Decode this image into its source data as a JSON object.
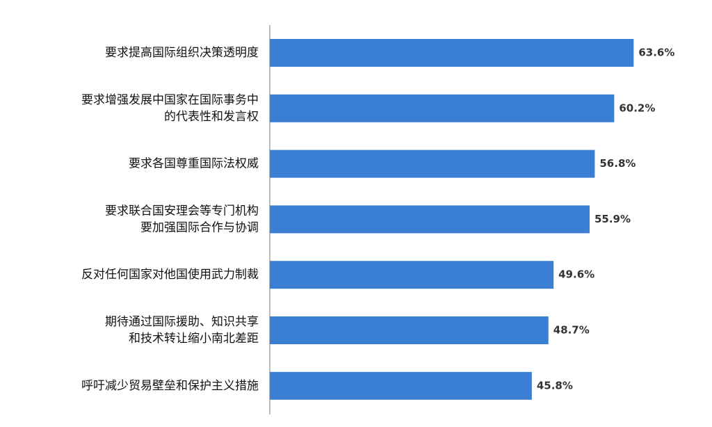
{
  "chart_data": {
    "type": "barh",
    "categories": [
      [
        "要求提高国际组织决策透明度"
      ],
      [
        "要求增强发展中国家在国际事务中",
        "的代表性和发言权"
      ],
      [
        "要求各国尊重国际法权威"
      ],
      [
        "要求联合国安理会等专门机构",
        "要加强国际合作与协调"
      ],
      [
        "反对任何国家对他国使用武力制裁"
      ],
      [
        "期待通过国际援助、知识共享",
        "和技术转让缩小南北差距"
      ],
      [
        "呼吁减少贸易壁垒和保护主义措施"
      ]
    ],
    "values": [
      63.6,
      60.2,
      56.8,
      55.9,
      49.6,
      48.7,
      45.8
    ],
    "value_labels": [
      "63.6%",
      "60.2%",
      "56.8%",
      "55.9%",
      "49.6%",
      "48.7%",
      "45.8%"
    ],
    "color": "#3a7fd4",
    "xlim": [
      0,
      70
    ]
  }
}
